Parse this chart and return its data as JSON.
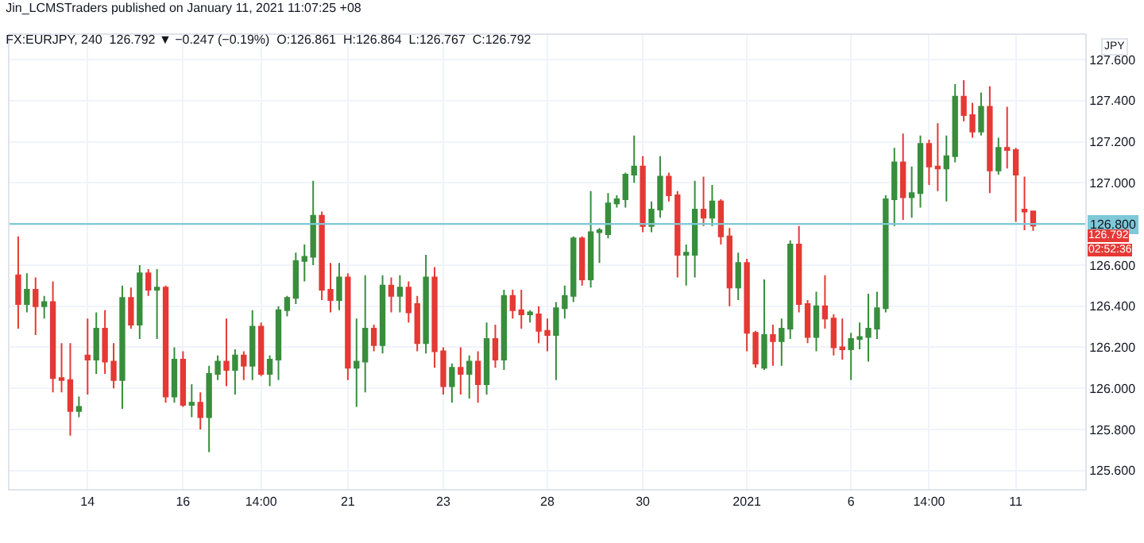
{
  "chart_data": {
    "type": "candlestick",
    "title": "Jin_LCMSTraders published on January 11, 2021 11:07:25 +08",
    "subtitle": "FX:EURJPY, 240  126.792 ▼ −0.247 (−0.19%)  O:126.861  H:126.864  L:126.767  C:126.792",
    "ylabel": "JPY",
    "categories": [
      null,
      null,
      null,
      null,
      null,
      null,
      null,
      null,
      "14",
      null,
      null,
      null,
      null,
      null,
      null,
      null,
      null,
      null,
      null,
      "16",
      null,
      null,
      null,
      null,
      null,
      null,
      null,
      null,
      "14:00",
      null,
      null,
      null,
      null,
      null,
      null,
      null,
      null,
      null,
      "21",
      null,
      null,
      null,
      null,
      null,
      null,
      null,
      null,
      null,
      null,
      "23",
      null,
      null,
      null,
      null,
      null,
      null,
      null,
      null,
      null,
      null,
      null,
      "28",
      null,
      null,
      null,
      null,
      null,
      null,
      null,
      null,
      null,
      null,
      "30",
      null,
      null,
      null,
      null,
      null,
      null,
      null,
      null,
      null,
      null,
      null,
      "2021",
      null,
      null,
      null,
      null,
      null,
      null,
      null,
      null,
      null,
      null,
      null,
      "6",
      null,
      null,
      null,
      null,
      null,
      null,
      null,
      null,
      "14:00",
      null,
      null,
      null,
      null,
      null,
      null,
      null,
      null,
      null,
      "11",
      null,
      null
    ],
    "ohlc": [
      [
        126.55,
        126.74,
        126.29,
        126.41
      ],
      [
        126.41,
        126.56,
        126.37,
        126.48
      ],
      [
        126.48,
        126.54,
        126.26,
        126.4
      ],
      [
        126.4,
        126.45,
        126.34,
        126.42
      ],
      [
        126.42,
        126.52,
        125.98,
        126.05
      ],
      [
        126.05,
        126.22,
        125.98,
        126.04
      ],
      [
        126.04,
        126.22,
        125.77,
        125.89
      ],
      [
        125.89,
        125.96,
        125.86,
        125.91
      ],
      [
        126.16,
        126.34,
        125.97,
        126.14
      ],
      [
        126.14,
        126.37,
        126.07,
        126.29
      ],
      [
        126.29,
        126.38,
        126.07,
        126.13
      ],
      [
        126.13,
        126.22,
        126.0,
        126.04
      ],
      [
        126.04,
        126.5,
        125.9,
        126.44
      ],
      [
        126.44,
        126.49,
        126.29,
        126.31
      ],
      [
        126.31,
        126.6,
        126.24,
        126.56
      ],
      [
        126.56,
        126.58,
        126.45,
        126.48
      ],
      [
        126.48,
        126.58,
        126.24,
        126.49
      ],
      [
        126.49,
        126.5,
        125.93,
        125.96
      ],
      [
        125.96,
        126.2,
        125.93,
        126.14
      ],
      [
        126.14,
        126.18,
        125.91,
        125.92
      ],
      [
        125.92,
        126.02,
        125.86,
        125.93
      ],
      [
        125.93,
        125.98,
        125.8,
        125.86
      ],
      [
        125.86,
        126.11,
        125.69,
        126.07
      ],
      [
        126.07,
        126.16,
        126.04,
        126.13
      ],
      [
        126.13,
        126.34,
        126.01,
        126.09
      ],
      [
        126.09,
        126.19,
        125.97,
        126.16
      ],
      [
        126.16,
        126.18,
        126.04,
        126.11
      ],
      [
        126.11,
        126.38,
        126.04,
        126.3
      ],
      [
        126.3,
        126.32,
        126.06,
        126.07
      ],
      [
        126.07,
        126.16,
        126.01,
        126.14
      ],
      [
        126.14,
        126.4,
        126.04,
        126.38
      ],
      [
        126.38,
        126.45,
        126.35,
        126.44
      ],
      [
        126.44,
        126.66,
        126.41,
        126.62
      ],
      [
        126.62,
        126.7,
        126.52,
        126.64
      ],
      [
        126.64,
        127.01,
        126.6,
        126.84
      ],
      [
        126.84,
        126.86,
        126.43,
        126.48
      ],
      [
        126.48,
        126.61,
        126.37,
        126.43
      ],
      [
        126.43,
        126.61,
        126.38,
        126.54
      ],
      [
        126.54,
        126.56,
        126.04,
        126.1
      ],
      [
        126.1,
        126.34,
        125.91,
        126.13
      ],
      [
        126.13,
        126.55,
        125.98,
        126.29
      ],
      [
        126.29,
        126.31,
        126.18,
        126.21
      ],
      [
        126.21,
        126.55,
        126.17,
        126.5
      ],
      [
        126.5,
        126.54,
        126.37,
        126.45
      ],
      [
        126.45,
        126.55,
        126.37,
        126.49
      ],
      [
        126.49,
        126.52,
        126.32,
        126.37
      ],
      [
        126.41,
        126.45,
        126.18,
        126.22
      ],
      [
        126.22,
        126.65,
        126.17,
        126.54
      ],
      [
        126.54,
        126.59,
        126.1,
        126.18
      ],
      [
        126.18,
        126.2,
        125.97,
        126.01
      ],
      [
        126.01,
        126.12,
        125.93,
        126.1
      ],
      [
        126.1,
        126.2,
        125.97,
        126.07
      ],
      [
        126.07,
        126.16,
        125.95,
        126.13
      ],
      [
        126.13,
        126.18,
        125.93,
        126.02
      ],
      [
        126.02,
        126.32,
        125.97,
        126.24
      ],
      [
        126.24,
        126.31,
        126.1,
        126.14
      ],
      [
        126.14,
        126.48,
        126.09,
        126.45
      ],
      [
        126.45,
        126.48,
        126.34,
        126.38
      ],
      [
        126.38,
        126.48,
        126.29,
        126.36
      ],
      [
        126.36,
        126.38,
        126.32,
        126.37
      ],
      [
        126.36,
        126.4,
        126.22,
        126.28
      ],
      [
        126.28,
        126.34,
        126.18,
        126.26
      ],
      [
        126.26,
        126.42,
        126.04,
        126.39
      ],
      [
        126.39,
        126.5,
        126.34,
        126.45
      ],
      [
        126.45,
        126.74,
        126.42,
        126.73
      ],
      [
        126.73,
        126.74,
        126.5,
        126.53
      ],
      [
        126.53,
        126.96,
        126.49,
        126.76
      ],
      [
        126.76,
        126.78,
        126.61,
        126.77
      ],
      [
        126.75,
        126.95,
        126.73,
        126.9
      ],
      [
        126.9,
        126.94,
        126.88,
        126.92
      ],
      [
        126.92,
        127.05,
        126.88,
        127.04
      ],
      [
        127.04,
        127.23,
        127.0,
        127.08
      ],
      [
        127.08,
        127.13,
        126.76,
        126.79
      ],
      [
        126.79,
        126.91,
        126.76,
        126.87
      ],
      [
        126.87,
        127.13,
        126.83,
        127.03
      ],
      [
        127.03,
        127.05,
        126.91,
        126.94
      ],
      [
        126.94,
        126.96,
        126.54,
        126.65
      ],
      [
        126.65,
        126.7,
        126.5,
        126.66
      ],
      [
        126.65,
        127.01,
        126.54,
        126.87
      ],
      [
        126.87,
        127.03,
        126.79,
        126.83
      ],
      [
        126.83,
        126.99,
        126.79,
        126.91
      ],
      [
        126.91,
        126.92,
        126.7,
        126.74
      ],
      [
        126.74,
        126.78,
        126.4,
        126.49
      ],
      [
        126.49,
        126.66,
        126.43,
        126.61
      ],
      [
        126.61,
        126.63,
        126.18,
        126.27
      ],
      [
        126.27,
        126.28,
        126.1,
        126.12
      ],
      [
        126.1,
        126.53,
        126.09,
        126.26
      ],
      [
        126.26,
        126.31,
        126.11,
        126.23
      ],
      [
        126.23,
        126.34,
        126.11,
        126.29
      ],
      [
        126.29,
        126.72,
        126.24,
        126.7
      ],
      [
        126.7,
        126.79,
        126.37,
        126.41
      ],
      [
        126.41,
        126.43,
        126.22,
        126.25
      ],
      [
        126.25,
        126.47,
        126.18,
        126.4
      ],
      [
        126.4,
        126.55,
        126.29,
        126.34
      ],
      [
        126.34,
        126.36,
        126.16,
        126.2
      ],
      [
        126.2,
        126.34,
        126.14,
        126.19
      ],
      [
        126.19,
        126.27,
        126.04,
        126.24
      ],
      [
        126.24,
        126.32,
        126.19,
        126.25
      ],
      [
        126.25,
        126.46,
        126.13,
        126.29
      ],
      [
        126.29,
        126.47,
        126.24,
        126.39
      ],
      [
        126.39,
        126.94,
        126.37,
        126.92
      ],
      [
        126.92,
        127.17,
        126.79,
        127.1
      ],
      [
        127.1,
        127.24,
        126.82,
        126.93
      ],
      [
        126.93,
        127.08,
        126.83,
        126.95
      ],
      [
        126.95,
        127.23,
        126.88,
        127.19
      ],
      [
        127.19,
        127.21,
        126.99,
        127.08
      ],
      [
        127.08,
        127.29,
        126.96,
        127.07
      ],
      [
        127.07,
        127.23,
        126.91,
        127.13
      ],
      [
        127.13,
        127.48,
        127.1,
        127.42
      ],
      [
        127.42,
        127.5,
        127.3,
        127.33
      ],
      [
        127.33,
        127.39,
        127.22,
        127.25
      ],
      [
        127.25,
        127.44,
        127.23,
        127.37
      ],
      [
        127.37,
        127.47,
        126.95,
        127.06
      ],
      [
        127.06,
        127.22,
        127.04,
        127.17
      ],
      [
        127.17,
        127.37,
        127.07,
        127.16
      ],
      [
        127.16,
        127.17,
        126.81,
        127.04
      ],
      [
        126.87,
        127.03,
        126.77,
        126.86
      ],
      [
        126.861,
        126.864,
        126.767,
        126.792
      ]
    ],
    "ylim": [
      125.51,
      127.72
    ],
    "yticks": [
      {
        "value": 125.6,
        "label": "125.600"
      },
      {
        "value": 125.8,
        "label": "125.800"
      },
      {
        "value": 126.0,
        "label": "126.000"
      },
      {
        "value": 126.2,
        "label": "126.200"
      },
      {
        "value": 126.4,
        "label": "126.400"
      },
      {
        "value": 126.6,
        "label": "126.600"
      },
      {
        "value": 126.8,
        "label": null
      },
      {
        "value": 127.0,
        "label": "127.000"
      },
      {
        "value": 127.2,
        "label": "127.200"
      },
      {
        "value": 127.4,
        "label": "127.400"
      },
      {
        "value": 127.6,
        "label": "127.600"
      }
    ],
    "ref_lines": [
      {
        "axis": "y",
        "value": 126.8,
        "label": "126.800",
        "color": "#7ec8d8"
      }
    ],
    "annotations": [
      "126.792",
      "02:52:36"
    ],
    "grid": true,
    "legend": false
  }
}
